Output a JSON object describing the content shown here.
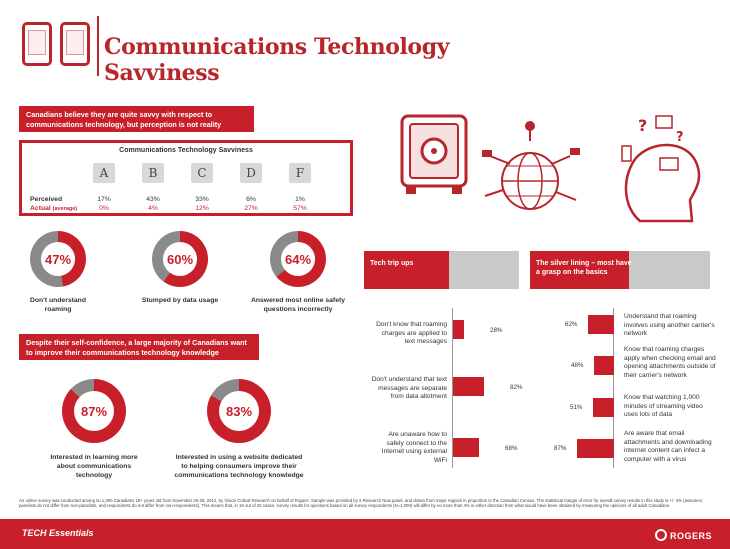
{
  "header": {
    "title": "Communications Technology Savviness"
  },
  "intro_banner": "Canadians believe they are quite savvy with respect to communications technology, but perception is not reality",
  "savviness": {
    "title": "Communications Technology Savviness",
    "grades": [
      "A",
      "B",
      "C",
      "D",
      "F"
    ],
    "perceived_label": "Perceived",
    "actual_label": "Actual",
    "actual_sub": "(average)",
    "perceived": [
      "17%",
      "43%",
      "33%",
      "6%",
      "1%"
    ],
    "actual": [
      "0%",
      "4%",
      "12%",
      "27%",
      "57%"
    ]
  },
  "donuts_top": [
    {
      "value": "47%",
      "pct": 47,
      "label": "Don't understand roaming"
    },
    {
      "value": "60%",
      "pct": 60,
      "label": "Stumped by data usage"
    },
    {
      "value": "64%",
      "pct": 64,
      "label": "Answered most online safety questions incorrectly"
    }
  ],
  "knowledge_banner": "Despite their self-confidence, a large majority of Canadians want to improve their communications technology knowledge",
  "donuts_bottom": [
    {
      "value": "87%",
      "pct": 87,
      "label": "Interested in learning more about communications technology"
    },
    {
      "value": "83%",
      "pct": 83,
      "label": "Interested in using a website dedicated to helping consumers improve their communications technology knowledge"
    }
  ],
  "tech_tripups": {
    "header": "Tech trip ups",
    "items": [
      {
        "question": "Don't know that roaming charges are applied to text messages",
        "value": "28%",
        "pct": 28
      },
      {
        "question": "Don't understand that text messages are separate from data allotment",
        "value": "82%",
        "pct": 82
      },
      {
        "question": "Are unaware how to safely connect to the Internet using external WiFi",
        "value": "68%",
        "pct": 68
      }
    ]
  },
  "silver_lining": {
    "header": "The silver lining – most have a grasp on the basics",
    "items": [
      {
        "statement": "Understand that roaming involves using another carrier's network",
        "value": "62%",
        "pct": 62
      },
      {
        "statement": "Know that roaming charges apply when checking email and opening attachments outside of their carrier's network",
        "value": "48%",
        "pct": 48
      },
      {
        "statement": "Know that watching 1,000 minutes of streaming video uses lots of data",
        "value": "51%",
        "pct": 51
      },
      {
        "statement": "Are aware that email attachments and downloading internet content can infect a computer with a virus",
        "value": "87%",
        "pct": 87
      }
    ]
  },
  "footnote": "An online survey was conducted among N=1,000 Canadians 18+ years old from November 26-28, 2012, by Vision Critical Research on behalf of Rogers. Sample was provided by a Research Now panel, and drawn from major regions in proportion to the Canadian Census. The statistical margin of error for overall survey results in this study is +/- 3% (assumes: panelists do not differ from non-panelists, and respondents do not differ from non-respondents). This means that, in 19 out of 20 cases, survey results for questions based on all survey respondents (N=1,000) will differ by no more than 3% in either direction from what would have been obtained by measuring the opinions of all adult Canadians.",
  "footer": {
    "left_brand": "TECH Essentials",
    "right_brand": "ROGERS"
  },
  "colors": {
    "accent": "#c8202a",
    "grey": "#8a8a8a"
  }
}
